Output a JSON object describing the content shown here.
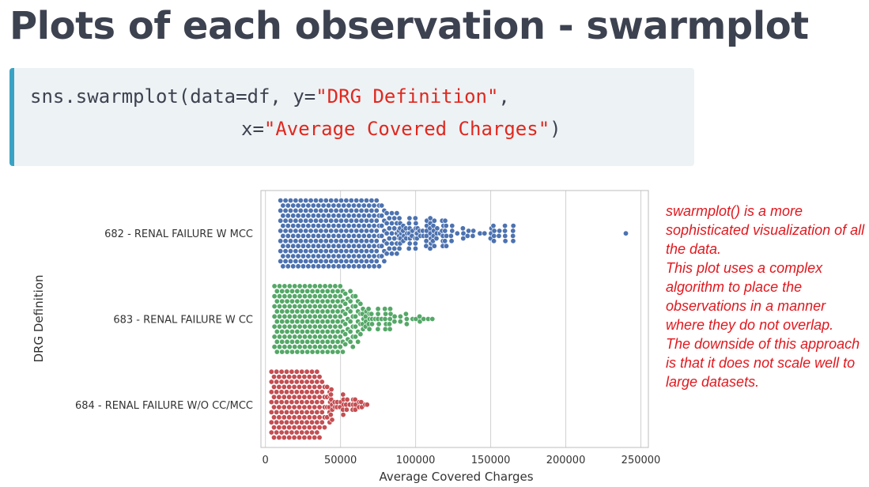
{
  "slide_title": "Plots of each observation - swarmplot",
  "code": {
    "line1_prefix": "sns.swarmplot(data=df, y=",
    "line1_string": "\"DRG Definition\"",
    "line1_suffix": ",",
    "line2_prefix": "x=",
    "line2_string": "\"Average Covered Charges\"",
    "line2_suffix": ")"
  },
  "annotation": [
    "swarmplot() is a more sophisticated visualization of all the data.",
    "This plot uses a complex algorithm to place the observations in a manner where they do not overlap.",
    "The downside of this approach is that it does not scale well to large datasets."
  ],
  "chart_data": {
    "type": "scatter",
    "subtype": "swarmplot",
    "xlabel": "Average Covered Charges",
    "ylabel": "DRG Definition",
    "xlim": [
      -3000,
      255000
    ],
    "xticks": [
      0,
      50000,
      100000,
      150000,
      200000,
      250000
    ],
    "xtick_labels": [
      "0",
      "50000",
      "100000",
      "150000",
      "200000",
      "250000"
    ],
    "grid": "vertical",
    "categories": [
      "682 - RENAL FAILURE W MCC",
      "683 - RENAL FAILURE W CC",
      "684 - RENAL FAILURE W/O CC/MCC"
    ],
    "series": [
      {
        "category": "682 - RENAL FAILURE W MCC",
        "color": "#4c72b0",
        "bulk_range": [
          10000,
          88000
        ],
        "tail_values": [
          89000,
          90000,
          92000,
          94000,
          96000,
          98000,
          100000,
          101000,
          103000,
          105000,
          107000,
          110000,
          112000,
          114000,
          116000,
          118000,
          120000,
          124000,
          128000,
          132000,
          135000,
          138000,
          143000,
          146000,
          150000,
          152000,
          156000,
          160000,
          165000,
          240000
        ]
      },
      {
        "category": "683 - RENAL FAILURE W CC",
        "color": "#55a868",
        "bulk_range": [
          6000,
          64000
        ],
        "tail_values": [
          65000,
          67000,
          69000,
          71000,
          73000,
          75000,
          77000,
          80000,
          83000,
          86000,
          90000,
          94000,
          98000,
          100000,
          103000,
          105000,
          108000,
          111000
        ]
      },
      {
        "category": "684 - RENAL FAILURE W/O CC/MCC",
        "color": "#c44e52",
        "bulk_range": [
          4000,
          42000
        ],
        "tail_values": [
          43000,
          44000,
          46000,
          48000,
          50000,
          52000,
          54000,
          56000,
          58000,
          60000,
          62000,
          64000,
          66000,
          68000
        ]
      }
    ]
  }
}
